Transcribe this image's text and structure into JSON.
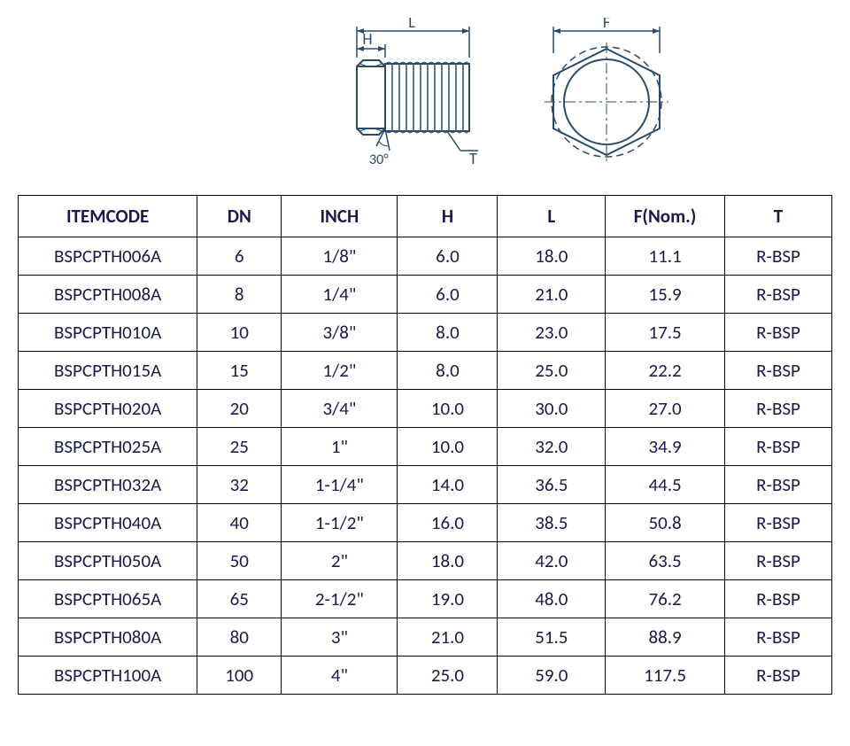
{
  "diagram": {
    "labels": {
      "L": "L",
      "H": "H",
      "F": "F",
      "T": "T",
      "angle": "30°"
    },
    "stroke_color": "#2a4a6a",
    "fill_color": "#ffffff",
    "thread_lines": 11
  },
  "table": {
    "columns": [
      "ITEMCODE",
      "DN",
      "INCH",
      "H",
      "L",
      "F(Nom.)",
      "T"
    ],
    "rows": [
      [
        "BSPCPTH006A",
        "6",
        "1/8\"",
        "6.0",
        "18.0",
        "11.1",
        "R-BSP"
      ],
      [
        "BSPCPTH008A",
        "8",
        "1/4\"",
        "6.0",
        "21.0",
        "15.9",
        "R-BSP"
      ],
      [
        "BSPCPTH010A",
        "10",
        "3/8\"",
        "8.0",
        "23.0",
        "17.5",
        "R-BSP"
      ],
      [
        "BSPCPTH015A",
        "15",
        "1/2\"",
        "8.0",
        "25.0",
        "22.2",
        "R-BSP"
      ],
      [
        "BSPCPTH020A",
        "20",
        "3/4\"",
        "10.0",
        "30.0",
        "27.0",
        "R-BSP"
      ],
      [
        "BSPCPTH025A",
        "25",
        "1\"",
        "10.0",
        "32.0",
        "34.9",
        "R-BSP"
      ],
      [
        "BSPCPTH032A",
        "32",
        "1-1/4\"",
        "14.0",
        "36.5",
        "44.5",
        "R-BSP"
      ],
      [
        "BSPCPTH040A",
        "40",
        "1-1/2\"",
        "16.0",
        "38.5",
        "50.8",
        "R-BSP"
      ],
      [
        "BSPCPTH050A",
        "50",
        "2\"",
        "18.0",
        "42.0",
        "63.5",
        "R-BSP"
      ],
      [
        "BSPCPTH065A",
        "65",
        "2-1/2\"",
        "19.0",
        "48.0",
        "76.2",
        "R-BSP"
      ],
      [
        "BSPCPTH080A",
        "80",
        "3\"",
        "21.0",
        "51.5",
        "88.9",
        "R-BSP"
      ],
      [
        "BSPCPTH100A",
        "100",
        "4\"",
        "25.0",
        "59.0",
        "117.5",
        "R-BSP"
      ]
    ],
    "header_font_weight": "bold",
    "cell_font_size": 21,
    "text_color": "#1a1a4a",
    "border_color": "#000000"
  }
}
